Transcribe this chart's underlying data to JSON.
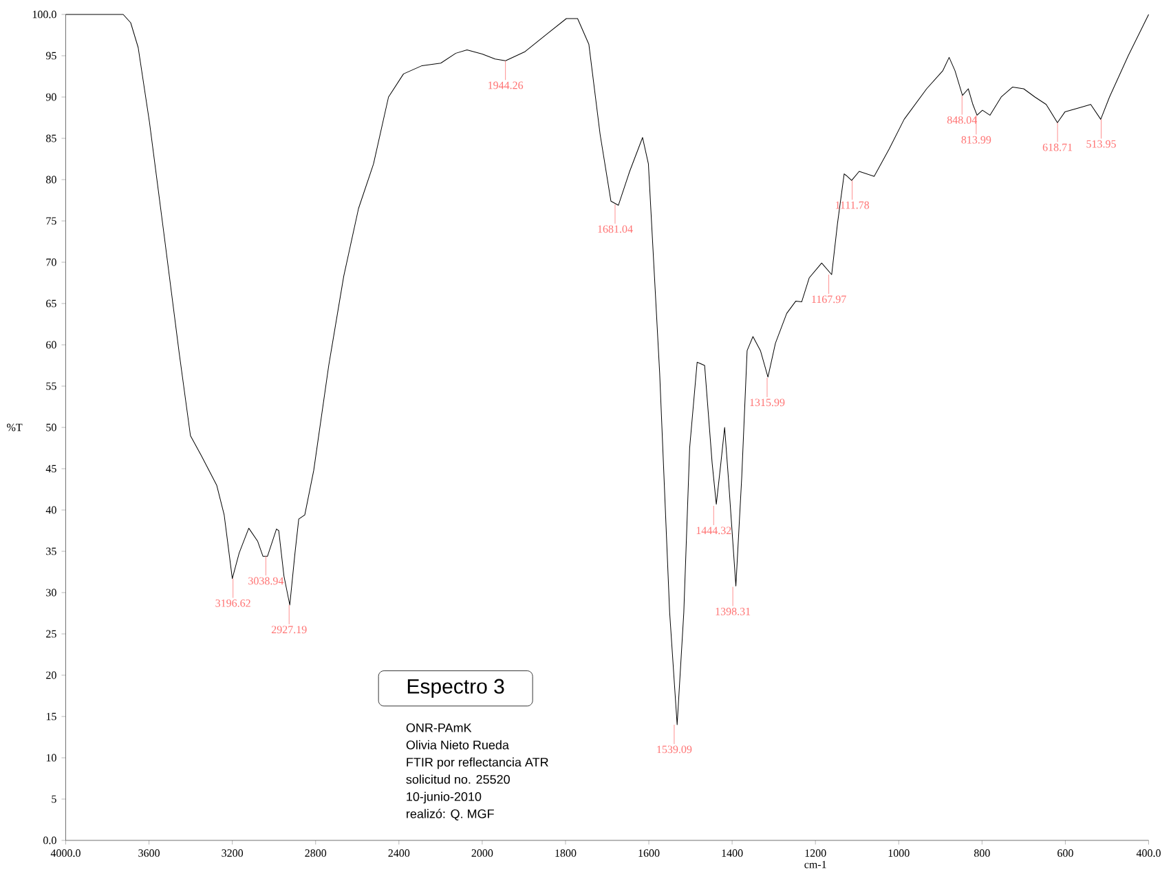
{
  "chart_data": [
    {
      "type": "line",
      "title": "Espectro 3",
      "ylabel": "%T",
      "x": [
        4000,
        3724,
        3688,
        3652,
        3598,
        3526,
        3455,
        3401,
        3347,
        3275,
        3239,
        3200,
        3167,
        3121,
        3078,
        3053,
        3031,
        2988,
        2977,
        2952,
        2924,
        2899,
        2881,
        2852,
        2809,
        2737,
        2665,
        2594,
        2522,
        2450,
        2378,
        2289,
        2199,
        2127,
        2073,
        2000
      ],
      "values": [
        100,
        100,
        99,
        96,
        87,
        73,
        59,
        49,
        46.5,
        43,
        39.4,
        31.7,
        34.8,
        37.8,
        36.2,
        34.4,
        34.4,
        37.7,
        37.5,
        32,
        28.5,
        34.8,
        38.9,
        39.4,
        44.8,
        57.5,
        68.3,
        76.5,
        81.9,
        90,
        92.8,
        93.8,
        94.1,
        95.3,
        95.7,
        95.2
      ],
      "color": "#000000",
      "xlim": [
        4000,
        2000
      ],
      "xticks": [
        {
          "value": 4000,
          "label": "4000.0"
        },
        3600,
        3200,
        2800,
        2400
      ],
      "ylim": [
        0,
        100
      ],
      "yticks": [
        {
          "value": 0,
          "label": "0.0"
        },
        5,
        10,
        15,
        20,
        25,
        30,
        35,
        40,
        45,
        50,
        55,
        60,
        65,
        70,
        75,
        80,
        85,
        90,
        95,
        {
          "value": 100,
          "label": "100.0"
        }
      ],
      "annotations": [
        "ONR-PAmK",
        "Olivia Nieto Rueda",
        "FTIR por reflectancia ATR",
        "solicitud no. 25520",
        "10-junio-2010",
        "realizó: Q. MGF",
        {
          "text": "3196.62",
          "x": 3196.62,
          "y": 31.7
        },
        {
          "text": "3038.94",
          "x": 3038.94,
          "y": 34.4
        },
        {
          "text": "2927.19",
          "x": 2927.19,
          "y": 28.5
        }
      ]
    },
    {
      "type": "line",
      "xlabel": "cm-1",
      "tick_labels": "x",
      "x": [
        2000,
        1969,
        1944,
        1897,
        1843,
        1798,
        1771,
        1744,
        1717,
        1691,
        1673,
        1646,
        1615,
        1601,
        1574,
        1550,
        1532,
        1516,
        1502,
        1484,
        1466,
        1448,
        1438,
        1427,
        1418,
        1409,
        1391,
        1377,
        1364,
        1350,
        1332,
        1314,
        1296,
        1269,
        1247,
        1233,
        1215,
        1185,
        1161,
        1147,
        1131,
        1126,
        1113,
        1095,
        1059,
        1023,
        987,
        933,
        894,
        879,
        865,
        847,
        833,
        822,
        812,
        799,
        781,
        754,
        727,
        700,
        673,
        646,
        619,
        601,
        566,
        539,
        515,
        494,
        449,
        400
      ],
      "values": [
        95.2,
        94.6,
        94.4,
        95.5,
        97.7,
        99.5,
        99.5,
        96.4,
        85.5,
        77.4,
        76.9,
        81,
        85.1,
        81.9,
        56.6,
        27.6,
        14,
        27.6,
        47.5,
        57.9,
        57.5,
        45.7,
        40.7,
        45.7,
        50,
        43.9,
        30.8,
        43.9,
        59.3,
        61,
        59.3,
        56.1,
        60.2,
        63.8,
        65.3,
        65.2,
        68.1,
        69.9,
        68.5,
        74.7,
        80.7,
        80.5,
        79.9,
        81,
        80.4,
        83.7,
        87.3,
        91,
        93.2,
        94.8,
        93.2,
        90.2,
        91,
        89.1,
        87.8,
        88.4,
        87.8,
        90,
        91.2,
        91,
        90,
        89.1,
        86.9,
        88.2,
        88.7,
        89.1,
        87.3,
        90,
        95,
        100
      ],
      "color": "#000000",
      "xlim": [
        2000,
        400
      ],
      "xticks": [
        2000,
        1800,
        1600,
        1400,
        1200,
        1000,
        800,
        600,
        {
          "value": 400,
          "label": "400.0"
        }
      ],
      "ylim": [
        0,
        100
      ],
      "annotations": [
        {
          "text": "1944.26",
          "x": 1944.26,
          "y": 94.4
        },
        {
          "text": "1681.04",
          "x": 1681.04,
          "y": 77
        },
        {
          "text": "1539.09",
          "x": 1539.09,
          "y": 14
        },
        {
          "text": "1444.32",
          "x": 1444.32,
          "y": 40.5
        },
        {
          "text": "1398.31",
          "x": 1398.31,
          "y": 30.7
        },
        {
          "text": "1315.99",
          "x": 1315.99,
          "y": 56
        },
        {
          "text": "1167.97",
          "x": 1167.97,
          "y": 68.5
        },
        {
          "text": "1111.78",
          "x": 1111.78,
          "y": 79.9
        },
        {
          "text": "848.04",
          "x": 848.04,
          "y": 90.2
        },
        {
          "text": "813.99",
          "x": 813.99,
          "y": 87.8
        },
        {
          "text": "618.71",
          "x": 618.71,
          "y": 86.9
        },
        {
          "text": "513.95",
          "x": 513.95,
          "y": 87.3
        }
      ]
    }
  ]
}
